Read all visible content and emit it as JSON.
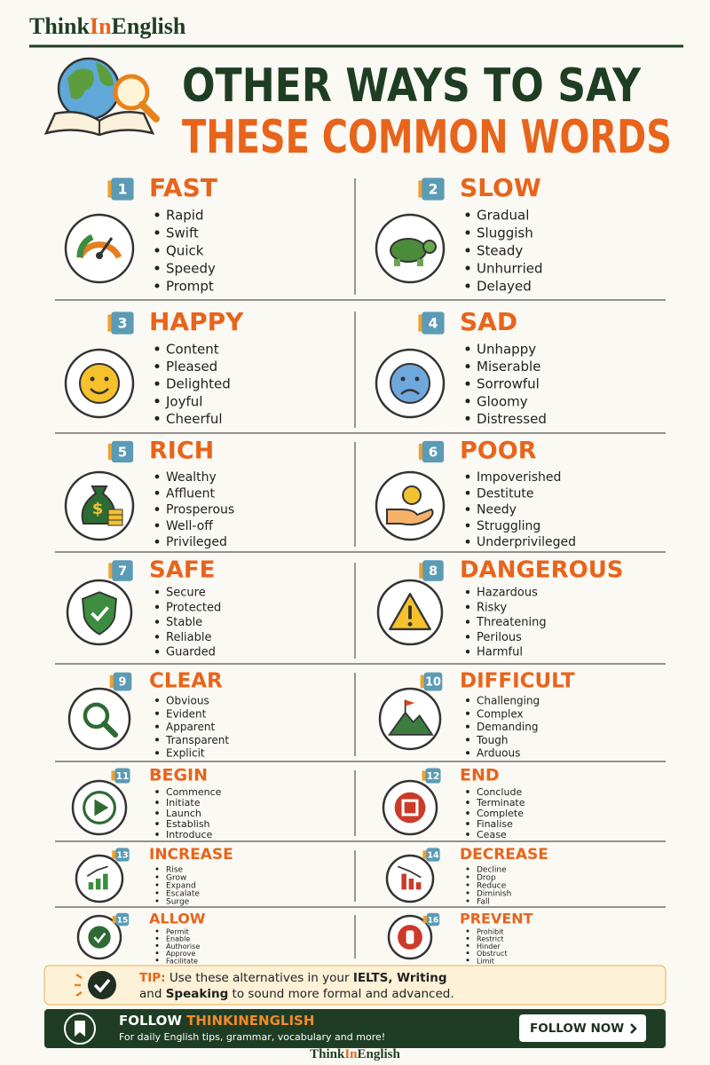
{
  "header": {
    "brand": [
      "Think",
      "In",
      "English"
    ],
    "title_line_1": "OTHER WAYS TO SAY",
    "title_line_2": "THESE COMMON WORDS"
  },
  "items": [
    {
      "number": 1,
      "word": "FAST",
      "synonyms": [
        "Rapid",
        "Swift",
        "Quick",
        "Speedy",
        "Prompt"
      ]
    },
    {
      "number": 2,
      "word": "SLOW",
      "synonyms": [
        "Gradual",
        "Sluggish",
        "Steady",
        "Unhurried",
        "Delayed"
      ]
    },
    {
      "number": 3,
      "word": "HAPPY",
      "synonyms": [
        "Content",
        "Pleased",
        "Delighted",
        "Joyful",
        "Cheerful"
      ]
    },
    {
      "number": 4,
      "word": "SAD",
      "synonyms": [
        "Unhappy",
        "Miserable",
        "Sorrowful",
        "Gloomy",
        "Distressed"
      ]
    },
    {
      "number": 5,
      "word": "RICH",
      "synonyms": [
        "Wealthy",
        "Affluent",
        "Prosperous",
        "Well-off",
        "Privileged"
      ]
    },
    {
      "number": 6,
      "word": "POOR",
      "synonyms": [
        "Impoverished",
        "Destitute",
        "Needy",
        "Struggling",
        "Underprivileged"
      ]
    },
    {
      "number": 7,
      "word": "SAFE",
      "synonyms": [
        "Secure",
        "Protected",
        "Stable",
        "Reliable",
        "Guarded"
      ]
    },
    {
      "number": 8,
      "word": "DANGEROUS",
      "synonyms": [
        "Hazardous",
        "Risky",
        "Threatening",
        "Perilous",
        "Harmful"
      ]
    },
    {
      "number": 9,
      "word": "CLEAR",
      "synonyms": [
        "Obvious",
        "Evident",
        "Apparent",
        "Transparent",
        "Explicit"
      ]
    },
    {
      "number": 10,
      "word": "DIFFICULT",
      "synonyms": [
        "Challenging",
        "Complex",
        "Demanding",
        "Tough",
        "Arduous"
      ]
    },
    {
      "number": 11,
      "word": "BEGIN",
      "synonyms": [
        "Commence",
        "Initiate",
        "Launch",
        "Establish",
        "Introduce"
      ]
    },
    {
      "number": 12,
      "word": "END",
      "synonyms": [
        "Conclude",
        "Terminate",
        "Complete",
        "Finalise",
        "Cease"
      ]
    },
    {
      "number": 13,
      "word": "INCREASE",
      "synonyms": [
        "Rise",
        "Grow",
        "Expand",
        "Escalate",
        "Surge"
      ]
    },
    {
      "number": 14,
      "word": "DECREASE",
      "synonyms": [
        "Decline",
        "Drop",
        "Reduce",
        "Diminish",
        "Fall"
      ]
    },
    {
      "number": 15,
      "word": "ALLOW",
      "synonyms": [
        "Permit",
        "Enable",
        "Authorise",
        "Approve",
        "Facilitate"
      ]
    },
    {
      "number": 16,
      "word": "PREVENT",
      "synonyms": [
        "Prohibit",
        "Restrict",
        "Hinder",
        "Obstruct",
        "Limit"
      ]
    }
  ],
  "tip": {
    "label": "TIP:",
    "text_1": "Use these alternatives in your",
    "bold_1": "IELTS, Writing",
    "text_and": "and",
    "bold_2": "Speaking",
    "text_2": "to sound more formal and advanced."
  },
  "follow": {
    "prefix": "FOLLOW",
    "handle": "THINKINENGLISH",
    "subtitle": "For daily English tips, grammar, vocabulary and more!",
    "button": "FOLLOW NOW"
  },
  "footer": {
    "brand": [
      "Think",
      "In",
      "English"
    ]
  }
}
